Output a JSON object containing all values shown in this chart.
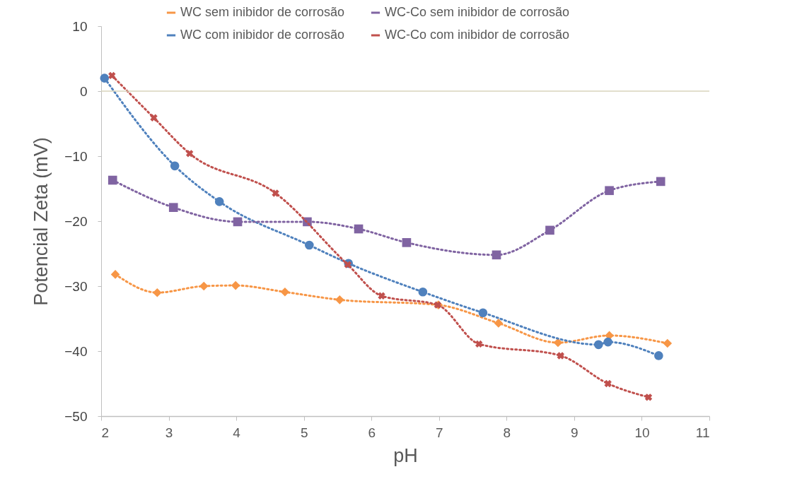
{
  "chart_data": {
    "type": "line",
    "xlabel": "pH",
    "ylabel": "Potencial Zeta (mV)",
    "xlim": [
      2,
      11
    ],
    "xticks": [
      2,
      3,
      4,
      5,
      6,
      7,
      8,
      9,
      10,
      11
    ],
    "ylim": [
      -50,
      10
    ],
    "yticks": [
      -50,
      -40,
      -30,
      -20,
      -10,
      0,
      10
    ],
    "grid": false,
    "legend": "top",
    "line_style": "dotted",
    "ref_lines": [
      {
        "axis": "y",
        "value": 0,
        "color": "#d9d5bd"
      }
    ],
    "series": [
      {
        "name": "WC sem inibidor de corrosão",
        "color": "#f79646",
        "marker": "diamond",
        "x": [
          2.21,
          2.83,
          3.52,
          3.99,
          4.72,
          5.53,
          6.99,
          7.88,
          8.76,
          9.52,
          10.38
        ],
        "values": [
          -28.2,
          -31.0,
          -30.0,
          -29.9,
          -30.9,
          -32.1,
          -32.9,
          -35.7,
          -38.7,
          -37.6,
          -38.8
        ]
      },
      {
        "name": "WC com inibidor de corrosão",
        "color": "#4f81bd",
        "marker": "circle",
        "x": [
          2.05,
          3.09,
          3.75,
          5.08,
          5.66,
          6.76,
          7.65,
          9.36,
          9.5,
          10.25
        ],
        "values": [
          2.0,
          -11.5,
          -17.0,
          -23.7,
          -26.5,
          -30.9,
          -34.1,
          -39.0,
          -38.6,
          -40.7
        ]
      },
      {
        "name": "WC-Co sem inibidor de corrosão",
        "color": "#8064a2",
        "marker": "square",
        "x": [
          2.17,
          3.07,
          4.02,
          5.05,
          5.81,
          6.52,
          7.85,
          8.64,
          9.52,
          10.28
        ],
        "values": [
          -13.7,
          -17.9,
          -20.1,
          -20.1,
          -21.2,
          -23.3,
          -25.2,
          -21.4,
          -15.3,
          -13.9
        ]
      },
      {
        "name": "WC-Co com inibidor de corrosão",
        "color": "#c0504d",
        "marker": "cross",
        "x": [
          2.16,
          2.78,
          3.31,
          4.58,
          5.65,
          6.15,
          6.98,
          7.59,
          8.8,
          9.5,
          10.1
        ],
        "values": [
          2.4,
          -4.1,
          -9.6,
          -15.7,
          -26.7,
          -31.5,
          -32.9,
          -38.9,
          -40.7,
          -45.0,
          -47.1
        ]
      }
    ]
  }
}
